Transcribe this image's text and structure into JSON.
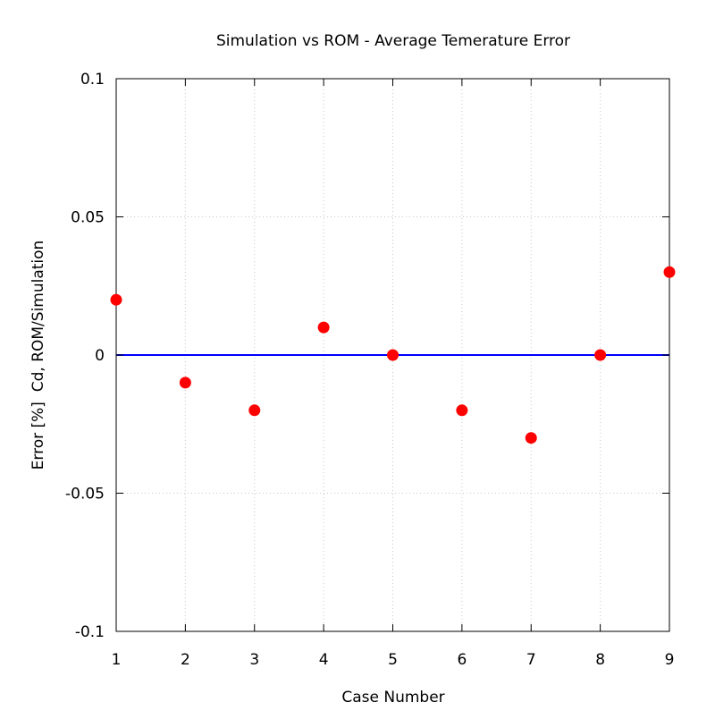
{
  "chart_data": {
    "type": "scatter",
    "title": "Simulation vs ROM - Average Temerature Error",
    "xlabel": "Case Number",
    "ylabel": "Error [%]  Cd, ROM/Simulation",
    "xlim": [
      1,
      9
    ],
    "ylim": [
      -0.1,
      0.1
    ],
    "xticks": [
      "1",
      "2",
      "3",
      "4",
      "5",
      "6",
      "7",
      "8",
      "9"
    ],
    "xtick_values": [
      1,
      2,
      3,
      4,
      5,
      6,
      7,
      8,
      9
    ],
    "yticks": [
      "0.1",
      "0.05",
      "0",
      "-0.05",
      "-0.1"
    ],
    "ytick_values": [
      0.1,
      0.05,
      0,
      -0.05,
      -0.1
    ],
    "grid": true,
    "x": [
      1,
      2,
      3,
      4,
      5,
      6,
      7,
      8,
      9
    ],
    "y": [
      0.02,
      -0.01,
      -0.02,
      0.01,
      0,
      -0.02,
      -0.03,
      0,
      0.03
    ],
    "reference_line": 0,
    "colors": {
      "points": "#ff0000",
      "reference_line": "#0000ff",
      "grid": "#c8c8c8"
    }
  }
}
